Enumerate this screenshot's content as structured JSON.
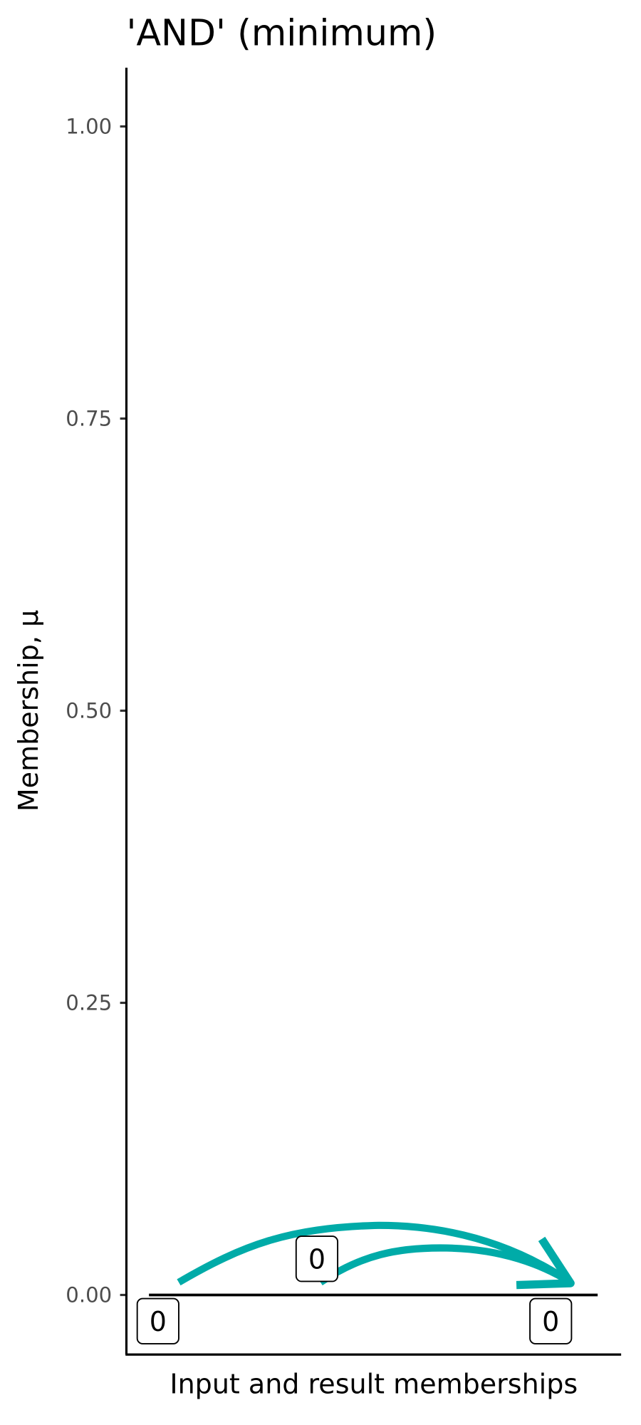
{
  "chart_data": {
    "type": "line",
    "title": "'AND' (minimum)",
    "xlabel": "Input and result memberships",
    "ylabel": "Membership, μ",
    "ylim": [
      -0.05,
      1.05
    ],
    "yticks": [
      {
        "value": 0.0,
        "label": "0.00"
      },
      {
        "value": 0.25,
        "label": "0.25"
      },
      {
        "value": 0.5,
        "label": "0.50"
      },
      {
        "value": 0.75,
        "label": "0.75"
      },
      {
        "value": 1.0,
        "label": "1.00"
      }
    ],
    "grid": false,
    "baseline_value": 0,
    "points": [
      {
        "role": "input",
        "value": 0,
        "label": "0"
      },
      {
        "role": "input",
        "value": 0,
        "label": "0"
      },
      {
        "role": "result",
        "value": 0,
        "label": "0"
      }
    ],
    "arrows": [
      {
        "from": 0,
        "to": 2
      },
      {
        "from": 1,
        "to": 2
      }
    ],
    "colors": {
      "arrow": "#00aba8",
      "axis": "#000000",
      "tick_label": "#4d4d4d"
    }
  }
}
